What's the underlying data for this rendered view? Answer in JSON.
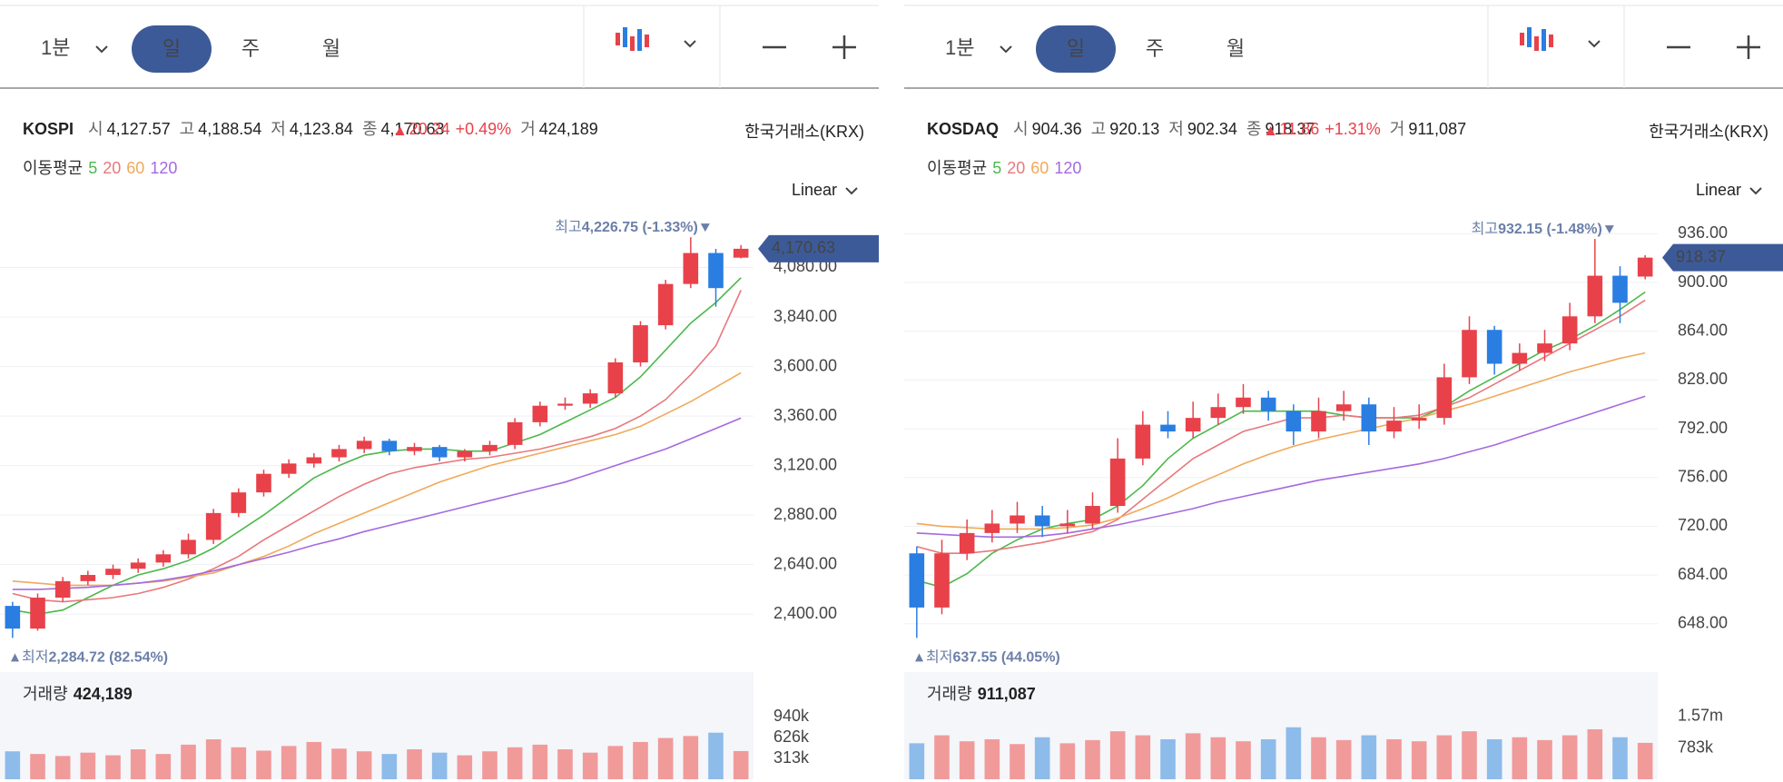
{
  "panels": [
    {
      "toolbar": {
        "interval": "1분",
        "tabs": [
          "일",
          "주",
          "월"
        ]
      },
      "info": {
        "name": "KOSPI",
        "items": [
          {
            "label": "시",
            "value": "4,127.57"
          },
          {
            "label": "고",
            "value": "4,188.54"
          },
          {
            "label": "저",
            "value": "4,123.84"
          },
          {
            "label": "종",
            "value": "4,170.63"
          }
        ],
        "change": "20.24",
        "change_pct": "+0.49%",
        "volume_label": "거",
        "volume": "424,189",
        "exchange": "한국거래소(KRX)"
      },
      "ma_label": "이동평균",
      "scale": "Linear"
    },
    {
      "toolbar": {
        "interval": "1분",
        "tabs": [
          "일",
          "주",
          "월"
        ]
      },
      "info": {
        "name": "KOSDAQ",
        "items": [
          {
            "label": "시",
            "value": "904.36"
          },
          {
            "label": "고",
            "value": "920.13"
          },
          {
            "label": "저",
            "value": "902.34"
          },
          {
            "label": "종",
            "value": "918.37"
          }
        ],
        "change": "11.86",
        "change_pct": "+1.31%",
        "volume_label": "거",
        "volume": "911,087",
        "exchange": "한국거래소(KRX)"
      },
      "ma_label": "이동평균",
      "scale": "Linear"
    }
  ],
  "chart_data": [
    {
      "type": "candlestick",
      "up_color": "#e8414a",
      "down_color": "#2a7de1",
      "open": [
        2440,
        2330,
        2480,
        2560,
        2590,
        2620,
        2650,
        2690,
        2760,
        2890,
        2990,
        3080,
        3130,
        3160,
        3200,
        3240,
        3190,
        3210,
        3160,
        3190,
        3220,
        3330,
        3410,
        3420,
        3470,
        3620,
        3800,
        4000,
        4150,
        4127.57
      ],
      "high": [
        2460,
        2500,
        2580,
        2610,
        2640,
        2670,
        2710,
        2790,
        2910,
        3010,
        3100,
        3150,
        3180,
        3220,
        3260,
        3250,
        3230,
        3220,
        3200,
        3240,
        3350,
        3430,
        3450,
        3490,
        3640,
        3820,
        4020,
        4226.75,
        4170,
        4188.54
      ],
      "low": [
        2284.72,
        2320,
        2460,
        2540,
        2570,
        2600,
        2630,
        2670,
        2740,
        2870,
        2970,
        3060,
        3110,
        3140,
        3180,
        3170,
        3170,
        3140,
        3140,
        3170,
        3200,
        3310,
        3390,
        3400,
        3450,
        3600,
        3780,
        3980,
        3890,
        4123.84
      ],
      "close": [
        2330,
        2480,
        2560,
        2590,
        2620,
        2650,
        2690,
        2760,
        2890,
        2990,
        3080,
        3130,
        3160,
        3200,
        3240,
        3190,
        3210,
        3160,
        3190,
        3220,
        3330,
        3410,
        3420,
        3470,
        3620,
        3800,
        4000,
        4150,
        3980,
        4170.63
      ],
      "series": [
        {
          "name": "5",
          "color": "#4cb84c",
          "values": [
            2420,
            2400,
            2420,
            2480,
            2540,
            2590,
            2620,
            2660,
            2720,
            2800,
            2880,
            2970,
            3060,
            3120,
            3170,
            3190,
            3200,
            3200,
            3190,
            3190,
            3230,
            3270,
            3330,
            3390,
            3450,
            3550,
            3680,
            3810,
            3910,
            4030
          ]
        },
        {
          "name": "20",
          "color": "#e8787c",
          "values": [
            2500,
            2470,
            2460,
            2470,
            2480,
            2500,
            2530,
            2570,
            2620,
            2680,
            2760,
            2830,
            2900,
            2970,
            3030,
            3080,
            3110,
            3130,
            3150,
            3160,
            3180,
            3200,
            3230,
            3260,
            3300,
            3360,
            3440,
            3560,
            3700,
            3970
          ]
        },
        {
          "name": "60",
          "color": "#f0a95a",
          "values": [
            2560,
            2550,
            2540,
            2540,
            2540,
            2550,
            2560,
            2580,
            2600,
            2640,
            2680,
            2730,
            2790,
            2840,
            2890,
            2940,
            2990,
            3040,
            3080,
            3120,
            3150,
            3180,
            3210,
            3240,
            3270,
            3310,
            3370,
            3430,
            3500,
            3570
          ]
        },
        {
          "name": "120",
          "color": "#a569e0",
          "values": [
            2520,
            2520,
            2525,
            2530,
            2540,
            2550,
            2565,
            2585,
            2610,
            2640,
            2670,
            2700,
            2735,
            2765,
            2800,
            2830,
            2860,
            2890,
            2920,
            2950,
            2980,
            3010,
            3040,
            3080,
            3120,
            3160,
            3200,
            3250,
            3300,
            3350
          ]
        }
      ],
      "ylim": [
        2150,
        4355
      ],
      "yticks": [
        {
          "value": 2400,
          "label": "2,400.00"
        },
        {
          "value": 2640,
          "label": "2,640.00"
        },
        {
          "value": 2880,
          "label": "2,880.00"
        },
        {
          "value": 3120,
          "label": "3,120.00"
        },
        {
          "value": 3360,
          "label": "3,360.00"
        },
        {
          "value": 3600,
          "label": "3,600.00"
        },
        {
          "value": 3840,
          "label": "3,840.00"
        },
        {
          "value": 4080,
          "label": "4,080.00"
        }
      ],
      "grid": true,
      "max_label": {
        "title": "최고",
        "text": "4,226.75 (-1.33%)"
      },
      "min_label": {
        "title": "최저",
        "text": "2,284.72 (82.54%)"
      },
      "volume": {
        "title": "거래량",
        "total": "424,189",
        "up_color": "#f19a9a",
        "down_color": "#8dbbea",
        "values": [
          420000,
          380000,
          350000,
          400000,
          360000,
          450000,
          380000,
          520000,
          600000,
          480000,
          430000,
          500000,
          560000,
          460000,
          420000,
          380000,
          450000,
          400000,
          360000,
          420000,
          480000,
          520000,
          450000,
          400000,
          500000,
          560000,
          620000,
          650000,
          700000,
          424189
        ],
        "ylim": [
          0,
          1610000
        ],
        "yticks": [
          {
            "value": 313000,
            "label": "313k"
          },
          {
            "value": 626000,
            "label": "626k"
          },
          {
            "value": 940000,
            "label": "940k"
          }
        ]
      }
    },
    {
      "type": "candlestick",
      "up_color": "#e8414a",
      "down_color": "#2a7de1",
      "open": [
        700,
        660,
        700,
        715,
        722,
        728,
        720,
        722,
        735,
        770,
        795,
        790,
        800,
        808,
        815,
        805,
        790,
        805,
        810,
        790,
        798,
        800,
        830,
        865,
        840,
        848,
        855,
        875,
        905,
        904.36
      ],
      "high": [
        705,
        710,
        725,
        732,
        738,
        735,
        732,
        745,
        785,
        805,
        805,
        812,
        818,
        825,
        820,
        810,
        815,
        820,
        815,
        808,
        810,
        840,
        875,
        868,
        855,
        865,
        885,
        932.15,
        912,
        920.13
      ],
      "low": [
        637.55,
        655,
        695,
        708,
        715,
        712,
        715,
        718,
        730,
        765,
        785,
        785,
        795,
        803,
        798,
        780,
        785,
        798,
        780,
        785,
        792,
        795,
        825,
        832,
        835,
        842,
        850,
        870,
        870,
        902.34
      ],
      "close": [
        660,
        700,
        715,
        722,
        728,
        720,
        722,
        735,
        770,
        795,
        790,
        800,
        808,
        815,
        805,
        790,
        805,
        810,
        790,
        798,
        800,
        830,
        865,
        840,
        848,
        855,
        875,
        905,
        885,
        918.37
      ],
      "series": [
        {
          "name": "5",
          "color": "#4cb84c",
          "values": [
            680,
            675,
            685,
            700,
            710,
            718,
            722,
            725,
            735,
            750,
            770,
            785,
            795,
            805,
            805,
            805,
            805,
            802,
            800,
            800,
            800,
            808,
            820,
            830,
            840,
            850,
            858,
            868,
            880,
            893
          ]
        },
        {
          "name": "20",
          "color": "#e8787c",
          "values": [
            705,
            700,
            700,
            702,
            705,
            708,
            712,
            716,
            725,
            740,
            755,
            770,
            780,
            790,
            795,
            800,
            800,
            802,
            800,
            800,
            802,
            808,
            815,
            825,
            835,
            845,
            855,
            865,
            875,
            887
          ]
        },
        {
          "name": "60",
          "color": "#f0a95a",
          "values": [
            722,
            720,
            719,
            718,
            718,
            718,
            719,
            721,
            726,
            733,
            741,
            750,
            758,
            766,
            773,
            779,
            784,
            788,
            792,
            796,
            800,
            805,
            810,
            816,
            822,
            828,
            834,
            839,
            844,
            848
          ]
        },
        {
          "name": "120",
          "color": "#a569e0",
          "values": [
            715,
            714,
            713,
            712,
            712,
            713,
            715,
            718,
            721,
            725,
            729,
            733,
            738,
            742,
            746,
            750,
            754,
            757,
            760,
            763,
            766,
            770,
            775,
            780,
            786,
            792,
            798,
            804,
            810,
            816
          ]
        }
      ],
      "ylim": [
        617,
        953
      ],
      "yticks": [
        {
          "value": 648,
          "label": "648.00"
        },
        {
          "value": 684,
          "label": "684.00"
        },
        {
          "value": 720,
          "label": "720.00"
        },
        {
          "value": 756,
          "label": "756.00"
        },
        {
          "value": 792,
          "label": "792.00"
        },
        {
          "value": 828,
          "label": "828.00"
        },
        {
          "value": 864,
          "label": "864.00"
        },
        {
          "value": 900,
          "label": "900.00"
        },
        {
          "value": 936,
          "label": "936.00"
        }
      ],
      "grid": true,
      "max_label": {
        "title": "최고",
        "text": "932.15 (-1.48%)"
      },
      "min_label": {
        "title": "최저",
        "text": "637.55 (44.05%)"
      },
      "volume": {
        "title": "거래량",
        "total": "911,087",
        "up_color": "#f19a9a",
        "down_color": "#8dbbea",
        "values": [
          900000,
          1100000,
          950000,
          1000000,
          880000,
          1050000,
          900000,
          980000,
          1200000,
          1100000,
          1000000,
          1150000,
          1050000,
          950000,
          1000000,
          1300000,
          1050000,
          980000,
          1100000,
          1000000,
          950000,
          1100000,
          1200000,
          1000000,
          1050000,
          980000,
          1100000,
          1250000,
          1050000,
          911087
        ],
        "ylim": [
          0,
          2680000
        ],
        "yticks": [
          {
            "value": 783000,
            "label": "783k"
          },
          {
            "value": 1570000,
            "label": "1.57m"
          }
        ]
      }
    }
  ]
}
